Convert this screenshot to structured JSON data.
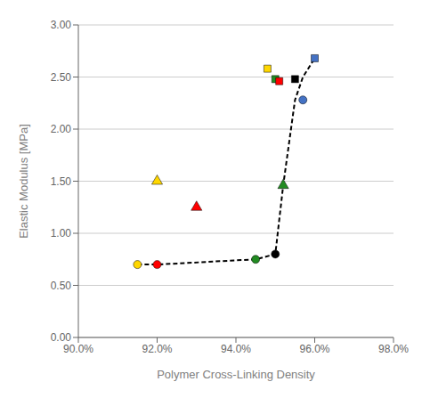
{
  "chart_data": {
    "type": "scatter",
    "xlabel": "Polymer Cross-Linking Density",
    "ylabel": "Elastic Modulus [MPa]",
    "xlim": [
      0.9,
      0.98
    ],
    "ylim": [
      0.0,
      3.0
    ],
    "xticks": [
      {
        "value": 0.9,
        "label": "90.0%"
      },
      {
        "value": 0.92,
        "label": "92.0%"
      },
      {
        "value": 0.94,
        "label": "94.0%"
      },
      {
        "value": 0.96,
        "label": "96.0%"
      },
      {
        "value": 0.98,
        "label": "98.0%"
      }
    ],
    "yticks": [
      {
        "value": 0.0,
        "label": "0.00"
      },
      {
        "value": 0.5,
        "label": "0.50"
      },
      {
        "value": 1.0,
        "label": "1.00"
      },
      {
        "value": 1.5,
        "label": "1.50"
      },
      {
        "value": 2.0,
        "label": "2.00"
      },
      {
        "value": 2.5,
        "label": "2.50"
      },
      {
        "value": 3.0,
        "label": "3.00"
      }
    ],
    "grid": "y",
    "series": [
      {
        "type": "line",
        "color": "#000000",
        "line_style": "dashed",
        "x": [
          0.915,
          0.92,
          0.945,
          0.95,
          0.952,
          0.955,
          0.957,
          0.96
        ],
        "values": [
          0.7,
          0.7,
          0.75,
          0.8,
          1.46,
          2.28,
          2.5,
          2.68
        ]
      },
      {
        "type": "scatter",
        "color": "#FFD700",
        "marker": "circle",
        "x": [
          0.915
        ],
        "values": [
          0.7
        ]
      },
      {
        "type": "scatter",
        "color": "#FF0000",
        "marker": "circle",
        "x": [
          0.92
        ],
        "values": [
          0.7
        ]
      },
      {
        "type": "scatter",
        "color": "#228B22",
        "marker": "circle",
        "x": [
          0.945
        ],
        "values": [
          0.75
        ]
      },
      {
        "type": "scatter",
        "color": "#000000",
        "marker": "circle",
        "x": [
          0.95
        ],
        "values": [
          0.8
        ]
      },
      {
        "type": "scatter",
        "color": "#FFD700",
        "marker": "triangle",
        "x": [
          0.92
        ],
        "values": [
          1.5
        ]
      },
      {
        "type": "scatter",
        "color": "#FF0000",
        "marker": "triangle",
        "x": [
          0.93
        ],
        "values": [
          1.25
        ]
      },
      {
        "type": "scatter",
        "color": "#228B22",
        "marker": "triangle",
        "x": [
          0.952
        ],
        "values": [
          1.46
        ]
      },
      {
        "type": "scatter",
        "color": "#FFD700",
        "marker": "square",
        "x": [
          0.948
        ],
        "values": [
          2.58
        ]
      },
      {
        "type": "scatter",
        "color": "#228B22",
        "marker": "square",
        "x": [
          0.95
        ],
        "values": [
          2.48
        ]
      },
      {
        "type": "scatter",
        "color": "#FF0000",
        "marker": "square",
        "x": [
          0.951
        ],
        "values": [
          2.46
        ]
      },
      {
        "type": "scatter",
        "color": "#000000",
        "marker": "square",
        "x": [
          0.955
        ],
        "values": [
          2.48
        ]
      },
      {
        "type": "scatter",
        "color": "#4472C4",
        "marker": "circle",
        "x": [
          0.957
        ],
        "values": [
          2.28
        ]
      },
      {
        "type": "scatter",
        "color": "#4472C4",
        "marker": "square",
        "x": [
          0.96
        ],
        "values": [
          2.68
        ]
      }
    ]
  }
}
